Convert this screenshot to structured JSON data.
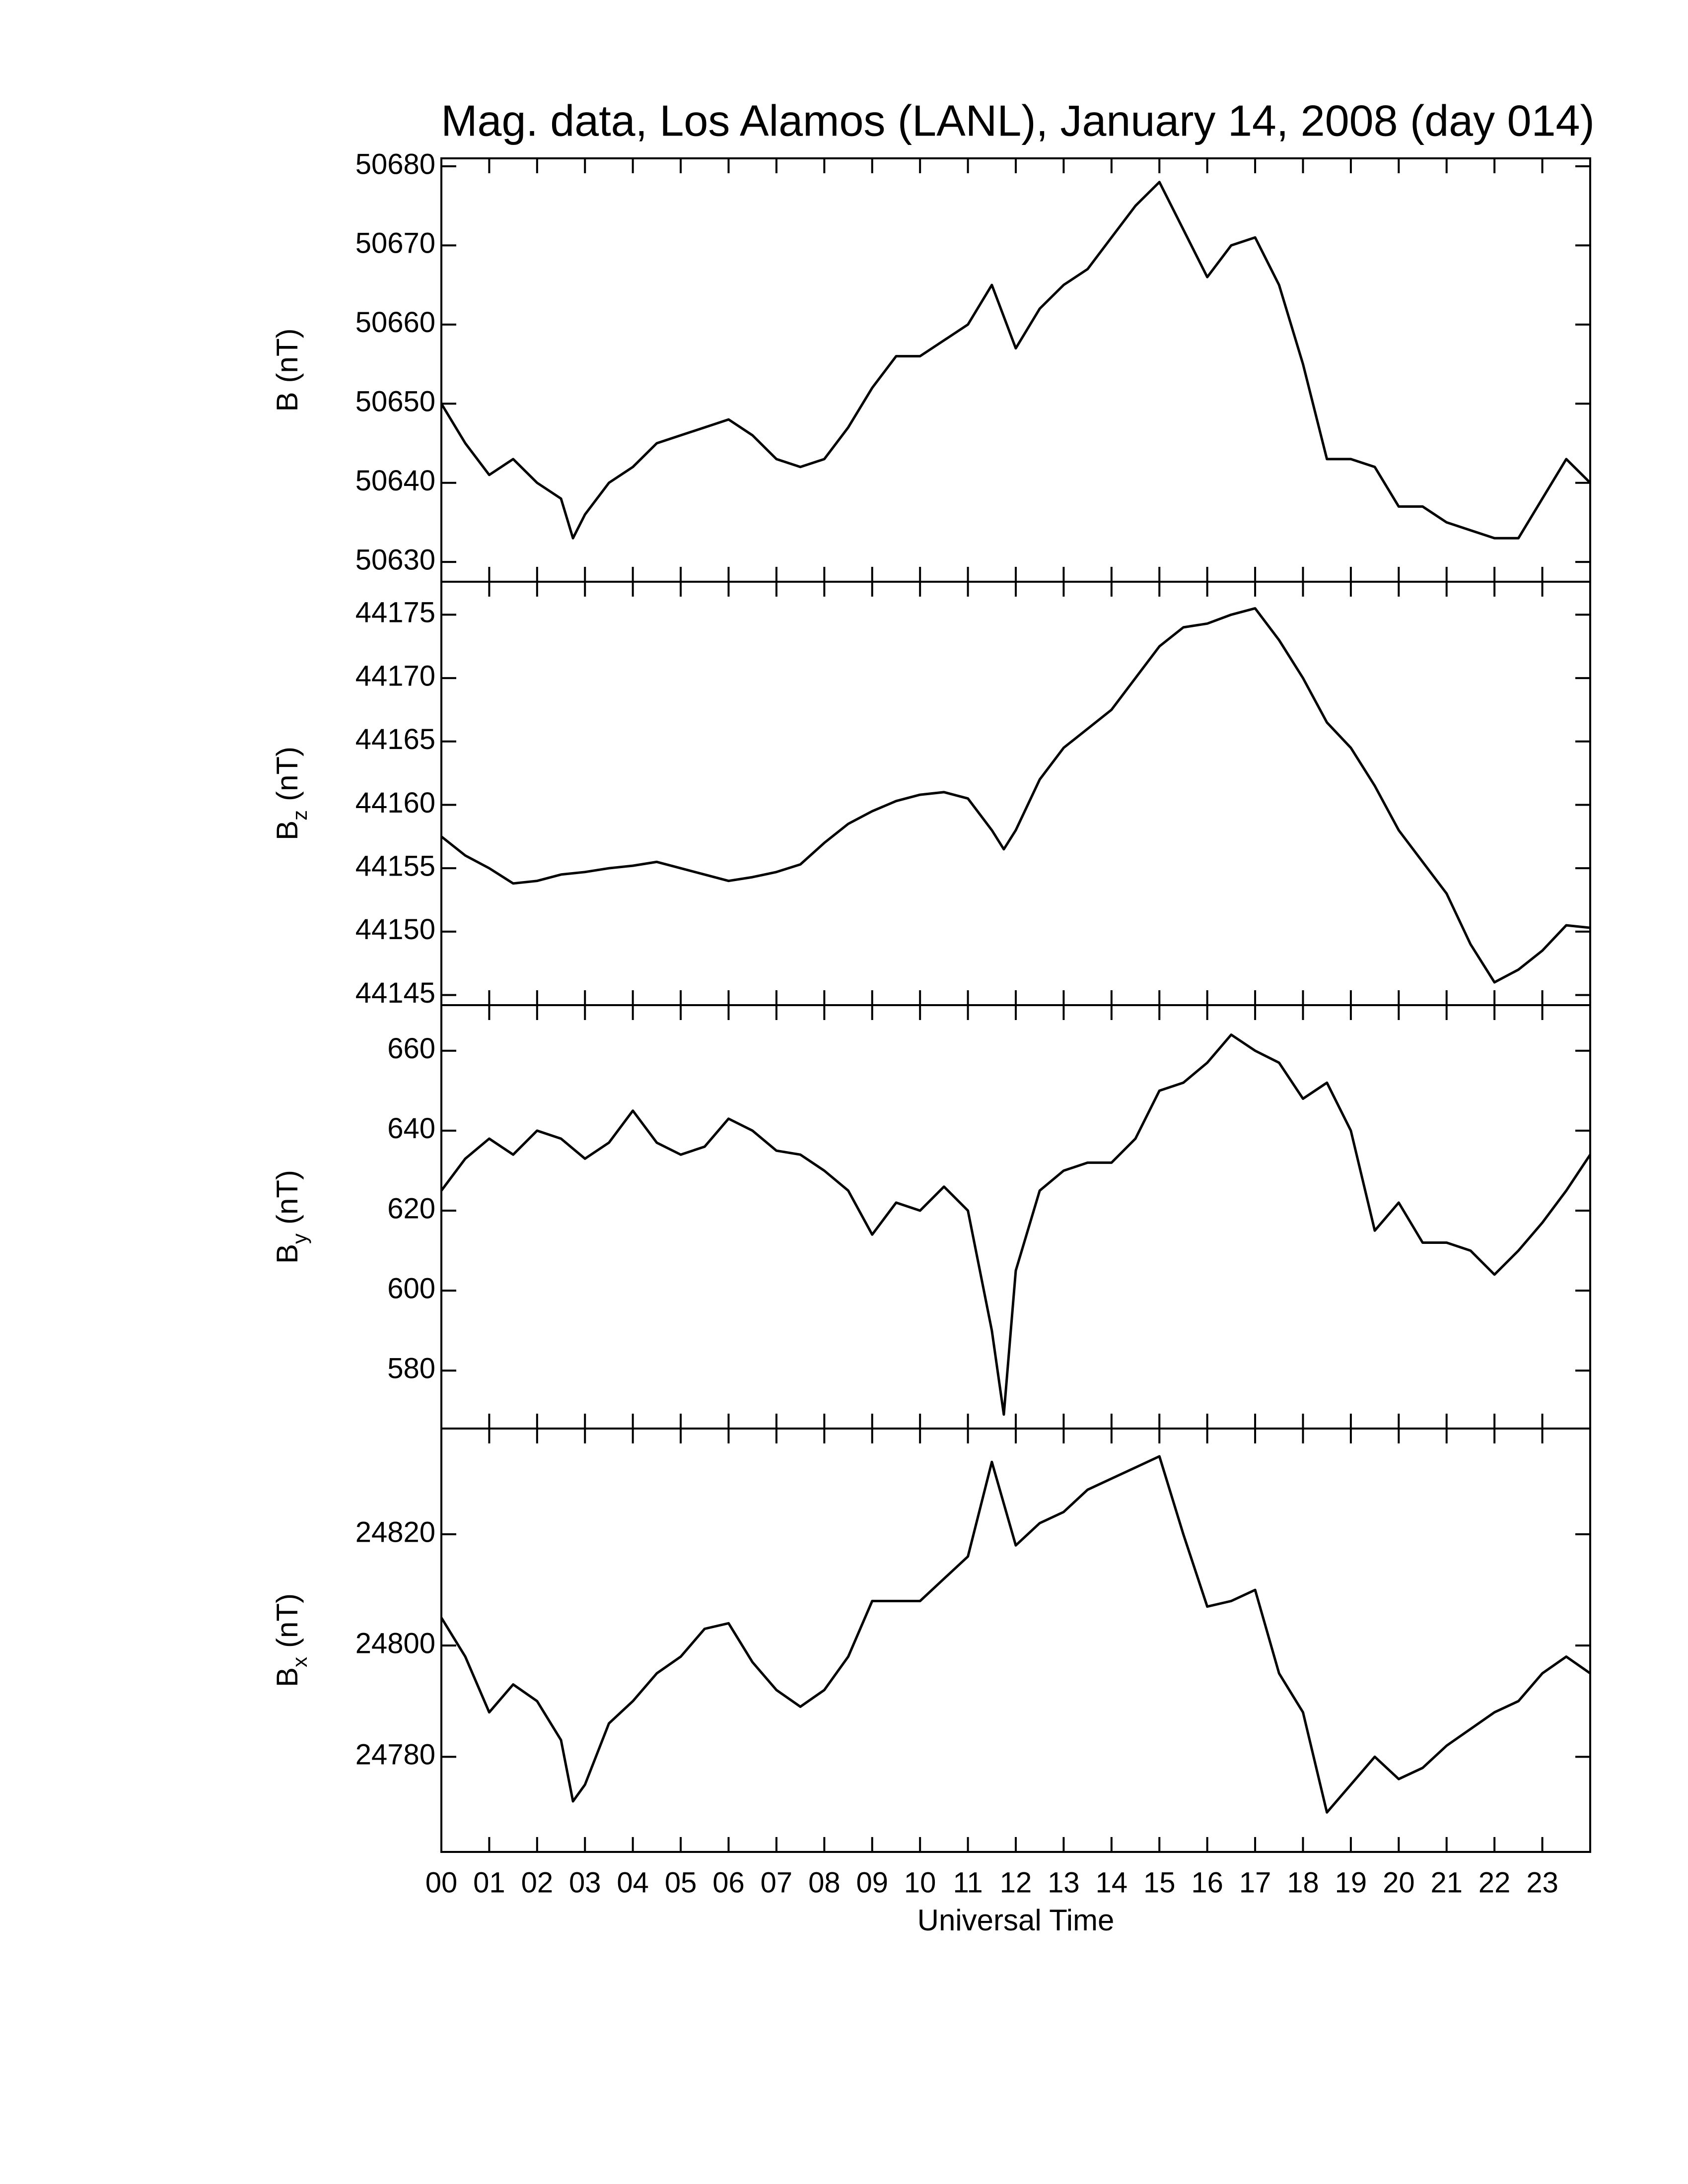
{
  "chart_data": [
    {
      "type": "line",
      "title": "Mag. data, Los Alamos (LANL), January 14, 2008 (day 014)",
      "ylabel": "B",
      "ylabel_unit": "(nT)",
      "color": "#000000",
      "x": [
        0,
        0.5,
        1,
        1.5,
        2,
        2.5,
        2.75,
        3,
        3.5,
        4,
        4.5,
        5,
        5.5,
        6,
        6.5,
        7,
        7.5,
        8,
        8.5,
        9,
        9.5,
        10,
        10.5,
        11,
        11.5,
        12,
        12.5,
        13,
        13.5,
        14,
        14.5,
        15,
        15.5,
        16,
        16.5,
        17,
        17.5,
        18,
        18.5,
        19,
        19.5,
        20,
        20.5,
        21,
        21.5,
        22,
        22.5,
        23,
        23.5,
        24
      ],
      "values": [
        50650,
        50645,
        50641,
        50643,
        50640,
        50638,
        50633,
        50636,
        50640,
        50642,
        50645,
        50646,
        50647,
        50648,
        50646,
        50643,
        50642,
        50643,
        50647,
        50652,
        50656,
        50656,
        50658,
        50660,
        50665,
        50657,
        50662,
        50665,
        50667,
        50671,
        50675,
        50678,
        50672,
        50666,
        50670,
        50671,
        50665,
        50655,
        50643,
        50643,
        50642,
        50637,
        50637,
        50635,
        50634,
        50633,
        50633,
        50638,
        50643,
        50640
      ],
      "xlim": [
        0,
        24
      ],
      "ylim": [
        50627.5,
        50681
      ],
      "yticks": [
        50630,
        50640,
        50650,
        50660,
        50670,
        50680
      ]
    },
    {
      "type": "line",
      "ylabel": "B",
      "ylabel_sub": "z",
      "ylabel_unit": "(nT)",
      "color": "#000000",
      "x": [
        0,
        0.5,
        1,
        1.5,
        2,
        2.5,
        3,
        3.5,
        4,
        4.5,
        5,
        5.5,
        6,
        6.5,
        7,
        7.5,
        8,
        8.5,
        9,
        9.5,
        10,
        10.5,
        11,
        11.5,
        11.75,
        12,
        12.5,
        13,
        13.5,
        14,
        14.5,
        15,
        15.5,
        16,
        16.5,
        17,
        17.5,
        18,
        18.5,
        19,
        19.5,
        20,
        20.5,
        21,
        21.5,
        22,
        22.5,
        23,
        23.5,
        24
      ],
      "values": [
        44157.5,
        44156,
        44155,
        44153.8,
        44154,
        44154.5,
        44154.7,
        44155,
        44155.2,
        44155.5,
        44155,
        44154.5,
        44154,
        44154.3,
        44154.7,
        44155.3,
        44157,
        44158.5,
        44159.5,
        44160.3,
        44160.8,
        44161,
        44160.5,
        44158,
        44156.5,
        44158,
        44162,
        44164.5,
        44166,
        44167.5,
        44170,
        44172.5,
        44174,
        44174.3,
        44175,
        44175.5,
        44173,
        44170,
        44166.5,
        44164.5,
        44161.5,
        44158,
        44155.5,
        44153,
        44149,
        44146,
        44147,
        44148.5,
        44150.5,
        44150.3
      ],
      "xlim": [
        0,
        24
      ],
      "ylim": [
        44144.2,
        44177.6
      ],
      "yticks": [
        44145,
        44150,
        44155,
        44160,
        44165,
        44170,
        44175
      ]
    },
    {
      "type": "line",
      "ylabel": "B",
      "ylabel_sub": "y",
      "ylabel_unit": "(nT)",
      "color": "#000000",
      "x": [
        0,
        0.5,
        1,
        1.5,
        2,
        2.5,
        3,
        3.5,
        4,
        4.5,
        5,
        5.5,
        6,
        6.5,
        7,
        7.5,
        8,
        8.5,
        9,
        9.5,
        10,
        10.5,
        11,
        11.5,
        11.75,
        12,
        12.5,
        13,
        13.5,
        14,
        14.5,
        15,
        15.5,
        16,
        16.5,
        17,
        17.5,
        18,
        18.5,
        19,
        19.5,
        20,
        20.5,
        21,
        21.5,
        22,
        22.5,
        23,
        23.5,
        24
      ],
      "values": [
        625,
        633,
        638,
        634,
        640,
        638,
        633,
        637,
        645,
        637,
        634,
        636,
        643,
        640,
        635,
        634,
        630,
        625,
        614,
        622,
        620,
        626,
        620,
        590,
        569,
        605,
        625,
        630,
        632,
        632,
        638,
        650,
        652,
        657,
        664,
        660,
        657,
        648,
        652,
        640,
        615,
        622,
        612,
        612,
        610,
        604,
        610,
        617,
        625,
        634
      ],
      "xlim": [
        0,
        24
      ],
      "ylim": [
        565.5,
        671.4
      ],
      "yticks": [
        580,
        600,
        620,
        640,
        660
      ]
    },
    {
      "type": "line",
      "ylabel": "B",
      "ylabel_sub": "x",
      "ylabel_unit": "(nT)",
      "color": "#000000",
      "xlabel": "Universal Time",
      "x": [
        0,
        0.5,
        1,
        1.5,
        2,
        2.5,
        2.75,
        3,
        3.5,
        4,
        4.5,
        5,
        5.5,
        6,
        6.5,
        7,
        7.5,
        8,
        8.5,
        9,
        9.5,
        10,
        10.5,
        11,
        11.5,
        12,
        12.5,
        13,
        13.5,
        14,
        14.5,
        15,
        15.5,
        16,
        16.5,
        17,
        17.5,
        18,
        18.5,
        19,
        19.5,
        20,
        20.5,
        21,
        21.5,
        22,
        22.5,
        23,
        23.5,
        24
      ],
      "values": [
        24805,
        24798,
        24788,
        24793,
        24790,
        24783,
        24772,
        24775,
        24786,
        24790,
        24795,
        24798,
        24803,
        24804,
        24797,
        24792,
        24789,
        24792,
        24798,
        24808,
        24808,
        24808,
        24812,
        24816,
        24833,
        24818,
        24822,
        24824,
        24828,
        24830,
        24832,
        24834,
        24820,
        24807,
        24808,
        24810,
        24795,
        24788,
        24770,
        24775,
        24780,
        24776,
        24778,
        24782,
        24785,
        24788,
        24790,
        24795,
        24798,
        24795
      ],
      "xlim": [
        0,
        24
      ],
      "ylim": [
        24762.9,
        24839
      ],
      "yticks": [
        24780,
        24800,
        24820
      ],
      "xticks": [
        {
          "value": 0,
          "label": "00"
        },
        {
          "value": 1,
          "label": "01"
        },
        {
          "value": 2,
          "label": "02"
        },
        {
          "value": 3,
          "label": "03"
        },
        {
          "value": 4,
          "label": "04"
        },
        {
          "value": 5,
          "label": "05"
        },
        {
          "value": 6,
          "label": "06"
        },
        {
          "value": 7,
          "label": "07"
        },
        {
          "value": 8,
          "label": "08"
        },
        {
          "value": 9,
          "label": "09"
        },
        {
          "value": 10,
          "label": "10"
        },
        {
          "value": 11,
          "label": "11"
        },
        {
          "value": 12,
          "label": "12"
        },
        {
          "value": 13,
          "label": "13"
        },
        {
          "value": 14,
          "label": "14"
        },
        {
          "value": 15,
          "label": "15"
        },
        {
          "value": 16,
          "label": "16"
        },
        {
          "value": 17,
          "label": "17"
        },
        {
          "value": 18,
          "label": "18"
        },
        {
          "value": 19,
          "label": "19"
        },
        {
          "value": 20,
          "label": "20"
        },
        {
          "value": 21,
          "label": "21"
        },
        {
          "value": 22,
          "label": "22"
        },
        {
          "value": 23,
          "label": "23"
        }
      ]
    }
  ]
}
